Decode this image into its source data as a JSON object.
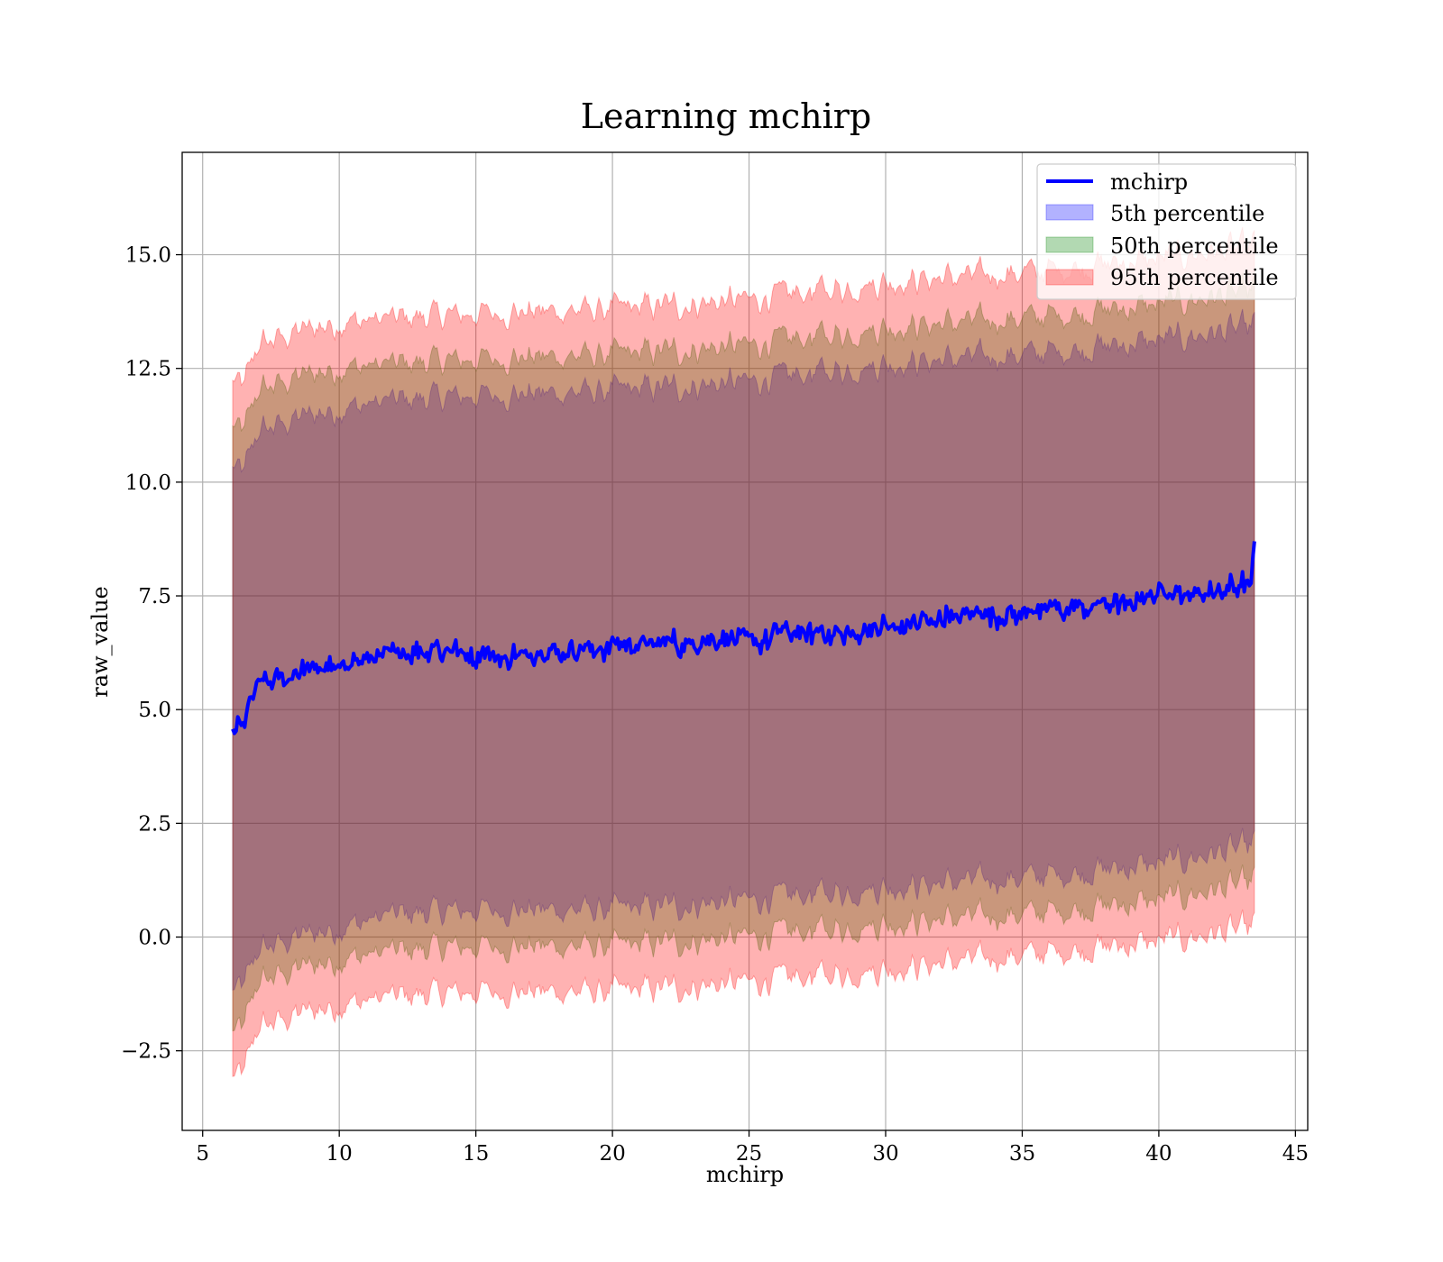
{
  "chart_data": {
    "type": "area",
    "title": "Learning mchirp",
    "xlabel": "mchirp",
    "ylabel": "raw_value",
    "xlim": [
      4.25,
      45.45
    ],
    "ylim": [
      -4.25,
      17.25
    ],
    "x_ticks": [
      5,
      10,
      15,
      20,
      25,
      30,
      35,
      40,
      45
    ],
    "y_ticks": [
      -2.5,
      0.0,
      2.5,
      5.0,
      7.5,
      10.0,
      12.5,
      15.0
    ],
    "x_tick_labels": [
      "5",
      "10",
      "15",
      "20",
      "25",
      "30",
      "35",
      "40",
      "45"
    ],
    "y_tick_labels": [
      "−2.5",
      "0.0",
      "2.5",
      "5.0",
      "7.5",
      "10.0",
      "12.5",
      "15.0"
    ],
    "grid": true,
    "legend_position": "top-right",
    "x_range": [
      6.1,
      43.5
    ],
    "series": [
      {
        "name": "mchirp",
        "kind": "line",
        "color": "#0000ff",
        "x": [
          6.1,
          6.5,
          7.0,
          7.5,
          8.0,
          9.0,
          10.0,
          11.0,
          12.0,
          13.0,
          14.0,
          15.0,
          16.0,
          17.0,
          18.0,
          19.0,
          20.0,
          21.0,
          22.0,
          23.0,
          24.0,
          25.0,
          26.0,
          27.0,
          28.0,
          29.0,
          30.0,
          31.0,
          32.0,
          33.0,
          34.0,
          35.0,
          36.0,
          37.0,
          38.0,
          39.0,
          40.0,
          41.0,
          42.0,
          43.0,
          43.4,
          43.5
        ],
        "y": [
          4.5,
          4.6,
          5.6,
          5.6,
          5.7,
          5.9,
          6.0,
          6.1,
          6.2,
          6.3,
          6.3,
          6.2,
          6.2,
          6.2,
          6.3,
          6.3,
          6.35,
          6.4,
          6.45,
          6.5,
          6.55,
          6.5,
          6.6,
          6.7,
          6.65,
          6.75,
          6.85,
          6.9,
          7.0,
          7.05,
          7.1,
          7.1,
          7.2,
          7.3,
          7.3,
          7.35,
          7.55,
          7.55,
          7.6,
          7.65,
          7.8,
          8.7
        ]
      },
      {
        "name": "5th percentile",
        "kind": "band",
        "color": "#0000ff",
        "opacity": 0.3,
        "x": [
          6.1,
          6.5,
          7.0,
          8.0,
          9.0,
          10.0,
          12.0,
          15.0,
          20.0,
          25.0,
          30.0,
          35.0,
          40.0,
          43.5
        ],
        "lower": [
          -1.2,
          -1.1,
          -0.3,
          -0.1,
          0.1,
          0.2,
          0.5,
          0.6,
          0.6,
          0.8,
          1.1,
          1.3,
          1.6,
          2.0
        ],
        "upper": [
          10.3,
          10.2,
          11.1,
          11.3,
          11.5,
          11.6,
          11.8,
          11.9,
          12.0,
          12.2,
          12.6,
          12.8,
          13.1,
          13.4
        ]
      },
      {
        "name": "50th percentile",
        "kind": "band",
        "color": "#008000",
        "opacity": 0.3,
        "x": [
          6.1,
          6.5,
          7.0,
          8.0,
          9.0,
          10.0,
          12.0,
          15.0,
          20.0,
          25.0,
          30.0,
          35.0,
          40.0,
          43.5
        ],
        "lower": [
          -2.1,
          -2.0,
          -1.0,
          -0.8,
          -0.6,
          -0.5,
          -0.3,
          -0.2,
          -0.2,
          0.0,
          0.3,
          0.5,
          0.8,
          1.2
        ],
        "upper": [
          11.2,
          11.1,
          12.0,
          12.2,
          12.4,
          12.5,
          12.6,
          12.7,
          12.8,
          13.0,
          13.4,
          13.6,
          13.9,
          14.2
        ]
      },
      {
        "name": "95th percentile",
        "kind": "band",
        "color": "#ff0000",
        "opacity": 0.3,
        "x": [
          6.1,
          6.5,
          7.0,
          8.0,
          9.0,
          10.0,
          12.0,
          15.0,
          20.0,
          25.0,
          30.0,
          35.0,
          40.0,
          43.5
        ],
        "lower": [
          -3.1,
          -3.0,
          -2.0,
          -1.8,
          -1.6,
          -1.5,
          -1.3,
          -1.2,
          -1.2,
          -1.0,
          -0.7,
          -0.4,
          -0.1,
          0.2
        ],
        "upper": [
          12.2,
          12.1,
          13.0,
          13.2,
          13.4,
          13.5,
          13.6,
          13.7,
          13.8,
          14.0,
          14.4,
          14.6,
          14.9,
          15.2
        ]
      }
    ]
  }
}
